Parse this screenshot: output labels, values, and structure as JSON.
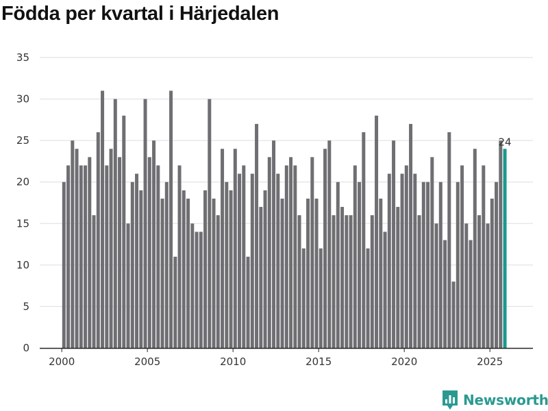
{
  "chart_data": {
    "type": "bar",
    "title": "Födda per kvartal i Härjedalen",
    "xlabel": "",
    "ylabel": "",
    "ylim": [
      0,
      35
    ],
    "grid": true,
    "y_ticks": [
      "0",
      "5",
      "10",
      "15",
      "20",
      "25",
      "30",
      "35"
    ],
    "x_ticks": [
      "2000",
      "2005",
      "2010",
      "2015",
      "2020",
      "2025"
    ],
    "x_start_year": 2000,
    "series": [
      {
        "name": "Födda",
        "values": [
          20,
          22,
          25,
          24,
          22,
          22,
          23,
          16,
          26,
          31,
          22,
          24,
          30,
          23,
          28,
          15,
          20,
          21,
          19,
          30,
          23,
          25,
          22,
          18,
          20,
          31,
          11,
          22,
          19,
          18,
          15,
          14,
          14,
          19,
          30,
          18,
          16,
          24,
          20,
          19,
          24,
          21,
          22,
          11,
          21,
          27,
          17,
          19,
          23,
          25,
          21,
          18,
          22,
          23,
          22,
          16,
          12,
          18,
          23,
          18,
          12,
          24,
          25,
          16,
          20,
          17,
          16,
          16,
          22,
          20,
          26,
          12,
          16,
          28,
          18,
          14,
          21,
          25,
          17,
          21,
          22,
          27,
          21,
          16,
          20,
          20,
          23,
          15,
          20,
          13,
          26,
          8,
          20,
          22,
          15,
          13,
          24,
          16,
          22,
          15,
          18,
          20,
          25,
          24
        ]
      }
    ],
    "highlight": {
      "index": 103,
      "label": "24"
    },
    "colors": {
      "bar": "#6f6e72",
      "highlight": "#1a9a8c",
      "grid": "#dddddd",
      "axis": "#222222"
    }
  },
  "brand": {
    "name": "Newsworthy",
    "icon": "newsworthy-logo-icon",
    "color": "#2a9a91"
  }
}
